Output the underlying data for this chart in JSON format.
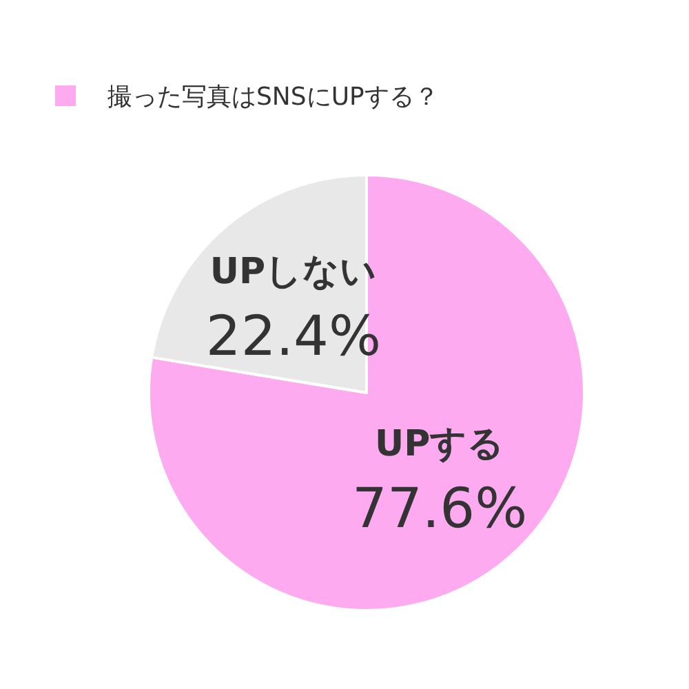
{
  "chart_data": {
    "type": "pie",
    "title": "撮った写真はSNSにUPする？",
    "categories": [
      "UPする",
      "UPしない"
    ],
    "values": [
      77.6,
      22.4
    ],
    "colors": [
      "#fdaaf0",
      "#e8e8e8"
    ],
    "value_labels": [
      "77.6%",
      "22.4%"
    ],
    "legend": false
  }
}
